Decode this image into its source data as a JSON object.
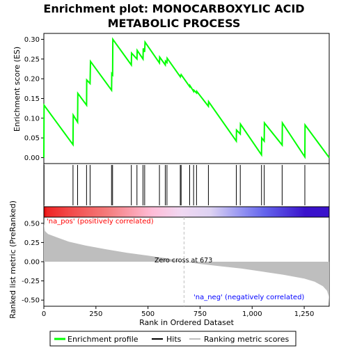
{
  "chart_data": {
    "type": "line",
    "title": "Enrichment plot: MONOCARBOXYLIC ACID METABOLIC PROCESS",
    "colors": {
      "es_line": "#00ff00",
      "hits": "#000000",
      "metric_fill": "#bebebe",
      "zero_cross": "#bebebe",
      "pos_label": "#ff0000",
      "neg_label": "#0000ff"
    },
    "es_panel": {
      "ylabel": "Enrichment score (ES)",
      "ylim": [
        -0.015,
        0.315
      ],
      "yticks": [
        0.0,
        0.05,
        0.1,
        0.15,
        0.2,
        0.25,
        0.3
      ],
      "ytick_labels": [
        "0.00",
        "0.05",
        "0.10",
        "0.15",
        "0.20",
        "0.25",
        "0.30"
      ],
      "es_points": [
        [
          0,
          0.0
        ],
        [
          1,
          0.133
        ],
        [
          140,
          0.033
        ],
        [
          141,
          0.108
        ],
        [
          162,
          0.09
        ],
        [
          163,
          0.163
        ],
        [
          205,
          0.133
        ],
        [
          206,
          0.197
        ],
        [
          222,
          0.188
        ],
        [
          224,
          0.244
        ],
        [
          325,
          0.171
        ],
        [
          326,
          0.213
        ],
        [
          330,
          0.21
        ],
        [
          331,
          0.3
        ],
        [
          420,
          0.235
        ],
        [
          421,
          0.265
        ],
        [
          447,
          0.25
        ],
        [
          448,
          0.272
        ],
        [
          476,
          0.25
        ],
        [
          477,
          0.277
        ],
        [
          484,
          0.268
        ],
        [
          486,
          0.293
        ],
        [
          555,
          0.24
        ],
        [
          556,
          0.255
        ],
        [
          583,
          0.235
        ],
        [
          584,
          0.245
        ],
        [
          591,
          0.241
        ],
        [
          592,
          0.252
        ],
        [
          655,
          0.205
        ],
        [
          656,
          0.21
        ],
        [
          659,
          0.206
        ],
        [
          660,
          0.21
        ],
        [
          700,
          0.18
        ],
        [
          701,
          0.183
        ],
        [
          719,
          0.168
        ],
        [
          720,
          0.171
        ],
        [
          733,
          0.164
        ],
        [
          734,
          0.168
        ],
        [
          790,
          0.13
        ],
        [
          791,
          0.142
        ],
        [
          924,
          0.042
        ],
        [
          925,
          0.07
        ],
        [
          943,
          0.06
        ],
        [
          944,
          0.085
        ],
        [
          1045,
          0.007
        ],
        [
          1046,
          0.05
        ],
        [
          1058,
          0.042
        ],
        [
          1059,
          0.088
        ],
        [
          1144,
          0.032
        ],
        [
          1145,
          0.088
        ],
        [
          1253,
          0.002
        ],
        [
          1254,
          0.083
        ],
        [
          1370,
          0.0
        ]
      ]
    },
    "hits": [
      1,
      140,
      162,
      205,
      222,
      325,
      330,
      420,
      447,
      476,
      484,
      555,
      583,
      591,
      655,
      659,
      700,
      719,
      733,
      790,
      924,
      943,
      1045,
      1058,
      1144,
      1253
    ],
    "metric_panel": {
      "ylabel": "Ranked list metric (PreRanked)",
      "ylim": [
        -0.58,
        0.58
      ],
      "yticks": [
        -0.5,
        -0.25,
        0.0,
        0.25,
        0.5
      ],
      "ytick_labels": [
        "-0.50",
        "-0.25",
        "0.00",
        "0.25",
        "0.50"
      ],
      "metric_points": [
        [
          0,
          0.5
        ],
        [
          5,
          0.4
        ],
        [
          20,
          0.36
        ],
        [
          60,
          0.32
        ],
        [
          120,
          0.26
        ],
        [
          200,
          0.21
        ],
        [
          300,
          0.16
        ],
        [
          400,
          0.115
        ],
        [
          500,
          0.08
        ],
        [
          600,
          0.04
        ],
        [
          673,
          0.0
        ],
        [
          750,
          -0.03
        ],
        [
          850,
          -0.06
        ],
        [
          950,
          -0.09
        ],
        [
          1050,
          -0.13
        ],
        [
          1150,
          -0.17
        ],
        [
          1250,
          -0.22
        ],
        [
          1300,
          -0.26
        ],
        [
          1340,
          -0.32
        ],
        [
          1360,
          -0.38
        ],
        [
          1368,
          -0.45
        ],
        [
          1370,
          -0.55
        ]
      ],
      "pos_label": "'na_pos' (positively correlated)",
      "neg_label": "'na_neg' (negatively correlated)",
      "zero_cross_label": "Zero cross at 673",
      "zero_cross": 673
    },
    "xlabel": "Rank in Ordered Dataset",
    "xlim": [
      0,
      1370
    ],
    "xticks": [
      0,
      250,
      500,
      750,
      1000,
      1250
    ],
    "xtick_labels": [
      "0",
      "250",
      "500",
      "750",
      "1,000",
      "1,250"
    ],
    "heat_stops": [
      {
        "x": 0,
        "color": "#e00000"
      },
      {
        "x": 15,
        "color": "#ee2424"
      },
      {
        "x": 120,
        "color": "#f24848"
      },
      {
        "x": 300,
        "color": "#f47a7a"
      },
      {
        "x": 520,
        "color": "#ffbcd7"
      },
      {
        "x": 660,
        "color": "#f0d8f2"
      },
      {
        "x": 800,
        "color": "#ddd2f2"
      },
      {
        "x": 960,
        "color": "#8f8ff2"
      },
      {
        "x": 1060,
        "color": "#6464ec"
      },
      {
        "x": 1255,
        "color": "#3a12cc"
      },
      {
        "x": 1370,
        "color": "#3a12cc"
      }
    ],
    "legend": {
      "position": "bottom",
      "items": [
        {
          "label": "Enrichment profile",
          "color": "#00ff00"
        },
        {
          "label": "Hits",
          "color": "#000000"
        },
        {
          "label": "Ranking metric scores",
          "color": "#bebebe"
        }
      ]
    }
  }
}
